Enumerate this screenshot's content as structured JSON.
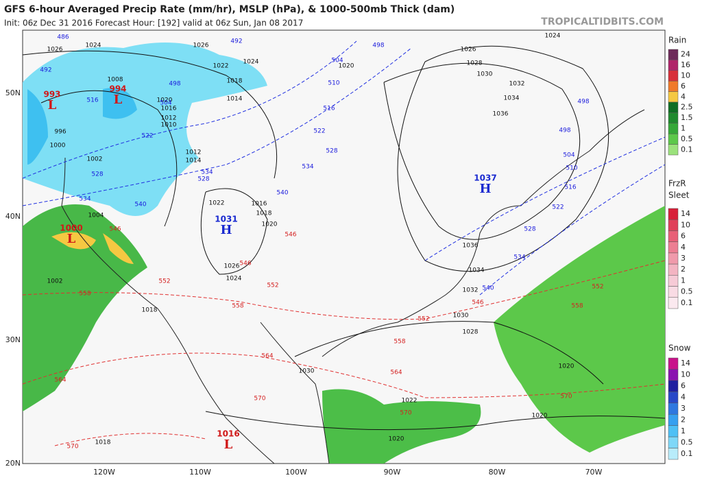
{
  "header": {
    "title": "GFS 6-hour Averaged Precip Rate (mm/hr), MSLP (hPa), & 1000-500mb Thick (dam)",
    "subtitle": "Init: 06z Dec 31 2016   Forecast Hour: [192]   valid at 06z Sun, Jan 08 2017",
    "site": "TROPICALTIDBITS.COM"
  },
  "map": {
    "lat_labels": [
      "50N",
      "40N",
      "30N",
      "20N"
    ],
    "lon_labels": [
      "120W",
      "110W",
      "100W",
      "90W",
      "80W",
      "70W"
    ],
    "pressure_centers": [
      {
        "value": "993",
        "letter": "L"
      },
      {
        "value": "994",
        "letter": "L"
      },
      {
        "value": "1000",
        "letter": "L"
      },
      {
        "value": "1031",
        "letter": "H"
      },
      {
        "value": "1037",
        "letter": "H"
      },
      {
        "value": "1016",
        "letter": "L"
      }
    ],
    "isobar_labels": [
      "1026",
      "1024",
      "1026",
      "1022",
      "1024",
      "1018",
      "1014",
      "1020",
      "1016",
      "1012",
      "1010",
      "1008",
      "996",
      "1000",
      "1002",
      "1012",
      "1014",
      "1022",
      "1016",
      "1018",
      "1020",
      "1026",
      "1024",
      "1004",
      "1002",
      "1018",
      "1018",
      "1020",
      "1022",
      "1030",
      "1028",
      "1030",
      "1032",
      "1034",
      "1036",
      "1026",
      "1028",
      "1030",
      "1032",
      "1034",
      "1036",
      "1024",
      "1020",
      "1020",
      "1020"
    ],
    "thickness_labels": [
      "486",
      "492",
      "492",
      "498",
      "498",
      "504",
      "510",
      "516",
      "522",
      "528",
      "534",
      "540",
      "540",
      "534",
      "528",
      "528",
      "534",
      "516",
      "522",
      "504",
      "498",
      "498",
      "504",
      "510",
      "516",
      "522",
      "528",
      "534",
      "540"
    ],
    "warm_thickness_labels": [
      "546",
      "546",
      "546",
      "552",
      "552",
      "558",
      "558",
      "552",
      "546",
      "552",
      "558",
      "558",
      "564",
      "564",
      "564",
      "570",
      "570",
      "570",
      "570"
    ]
  },
  "legend": {
    "rain": {
      "title": "Rain",
      "labels": [
        "24",
        "16",
        "10",
        "6",
        "4",
        "2.5",
        "1.5",
        "1",
        "0.5",
        "0.1"
      ],
      "colors": [
        "#6e2b5a",
        "#b0246a",
        "#d8303a",
        "#f07a2a",
        "#f5c842",
        "#0f6e24",
        "#1f8a2e",
        "#35a838",
        "#5cc84a",
        "#9be27c"
      ]
    },
    "frzr": {
      "title": "FrzR"
    },
    "sleet": {
      "title": "Sleet",
      "labels": [
        "14",
        "10",
        "6",
        "4",
        "3",
        "2",
        "1",
        "0.5",
        "0.1"
      ],
      "colors": [
        "#d8203a",
        "#e0405a",
        "#e86077",
        "#ec7e92",
        "#f09aab",
        "#f3b4c2",
        "#f6cad6",
        "#f9dbe4",
        "#fbe9ef"
      ]
    },
    "snow": {
      "title": "Snow",
      "labels": [
        "14",
        "10",
        "6",
        "4",
        "3",
        "2",
        "1",
        "0.5",
        "0.1"
      ],
      "colors": [
        "#c8128a",
        "#8a12b0",
        "#2020a0",
        "#2848c8",
        "#2e78e0",
        "#36a0f0",
        "#4ec0f5",
        "#7ed8f8",
        "#b8ecfb"
      ]
    }
  }
}
